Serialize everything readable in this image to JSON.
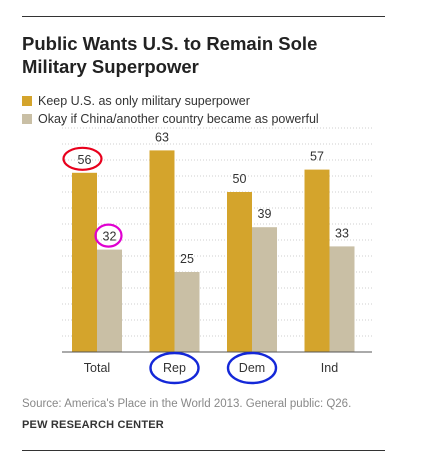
{
  "title": "Public Wants U.S. to Remain Sole Military Superpower",
  "colors": {
    "keep": "#D4A42C",
    "okay": "#C9BFA5",
    "grid": "#cfcfcf",
    "axis": "#555555",
    "annotation_red": "#E8001C",
    "annotation_magenta": "#E000D0",
    "annotation_blue": "#1428D8"
  },
  "chart_data": {
    "type": "bar",
    "title": "Public Wants U.S. to Remain Sole Military Superpower",
    "categories": [
      "Total",
      "Rep",
      "Dem",
      "Ind"
    ],
    "series": [
      {
        "name": "Keep U.S. as only military superpower",
        "values": [
          56,
          63,
          50,
          57
        ]
      },
      {
        "name": "Okay if China/another country became as powerful",
        "values": [
          32,
          25,
          39,
          33
        ]
      }
    ],
    "ylim": [
      0,
      70
    ],
    "grid": true,
    "legend_position": "top-left",
    "xlabel": "",
    "ylabel": "",
    "annotations": {
      "red_circle": "Total: 56",
      "magenta_circle": "Total: 32",
      "blue_circles": [
        "Rep",
        "Dem"
      ]
    }
  },
  "source": "Source: America's Place in the World 2013. General public: Q26.",
  "credit": "PEW RESEARCH CENTER"
}
